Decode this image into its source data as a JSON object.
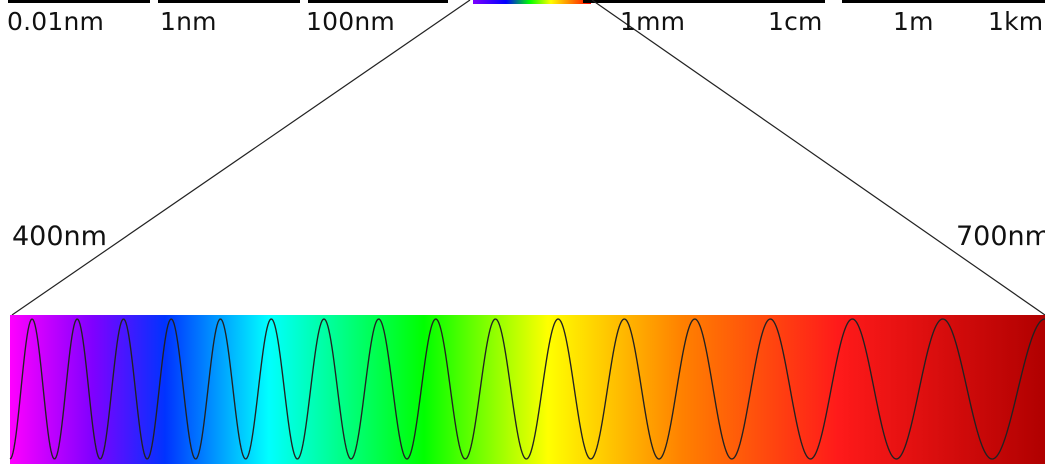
{
  "scale_labels": {
    "l001nm": "0.01nm",
    "l1nm": "1nm",
    "l100nm": "100nm",
    "l1mm": "1mm",
    "l1cm": "1cm",
    "l1m": "1m",
    "l1km": "1km"
  },
  "visible_band": {
    "start": "400nm",
    "end": "700nm"
  },
  "colors": {
    "text": "#111111",
    "line": "#222222",
    "scale_band": "#000000",
    "visible_spectrum_stops": [
      "#ff00ff",
      "#8000ff",
      "#0000ff",
      "#00ffff",
      "#00ff00",
      "#ffff00",
      "#ff8000",
      "#ff0000",
      "#b00000"
    ]
  }
}
